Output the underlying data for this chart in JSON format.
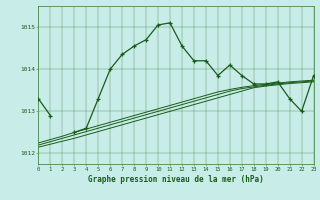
{
  "title": "Graphe pression niveau de la mer (hPa)",
  "background_color": "#c8ece8",
  "grid_color": "#4a8a4a",
  "line_color": "#1a5c1a",
  "hours": [
    0,
    1,
    2,
    3,
    4,
    5,
    6,
    7,
    8,
    9,
    10,
    11,
    12,
    13,
    14,
    15,
    16,
    17,
    18,
    19,
    20,
    21,
    22,
    23
  ],
  "main_line": [
    1013.3,
    1012.9,
    null,
    1012.5,
    1012.6,
    1013.3,
    1014.0,
    1014.35,
    1014.55,
    1014.7,
    1015.05,
    1015.1,
    1014.55,
    1014.2,
    1014.2,
    1013.85,
    1014.1,
    1013.85,
    1013.65,
    1013.65,
    1013.7,
    1013.3,
    1013.0,
    1013.85
  ],
  "trend_line1": [
    1012.15,
    1012.22,
    1012.29,
    1012.36,
    1012.44,
    1012.52,
    1012.6,
    1012.68,
    1012.76,
    1012.84,
    1012.92,
    1013.0,
    1013.08,
    1013.16,
    1013.24,
    1013.32,
    1013.4,
    1013.48,
    1013.56,
    1013.6,
    1013.63,
    1013.66,
    1013.68,
    1013.7
  ],
  "trend_line2": [
    1012.2,
    1012.28,
    1012.36,
    1012.44,
    1012.52,
    1012.6,
    1012.68,
    1012.76,
    1012.84,
    1012.92,
    1013.0,
    1013.08,
    1013.16,
    1013.24,
    1013.32,
    1013.4,
    1013.48,
    1013.54,
    1013.58,
    1013.62,
    1013.65,
    1013.68,
    1013.7,
    1013.72
  ],
  "trend_line3": [
    1012.25,
    1012.33,
    1012.41,
    1012.5,
    1012.58,
    1012.66,
    1012.74,
    1012.82,
    1012.9,
    1012.98,
    1013.06,
    1013.14,
    1013.22,
    1013.3,
    1013.38,
    1013.46,
    1013.52,
    1013.57,
    1013.61,
    1013.64,
    1013.67,
    1013.7,
    1013.72,
    1013.74
  ],
  "ylim": [
    1011.75,
    1015.5
  ],
  "yticks": [
    1012,
    1013,
    1014,
    1015
  ],
  "xlim": [
    0,
    23
  ]
}
